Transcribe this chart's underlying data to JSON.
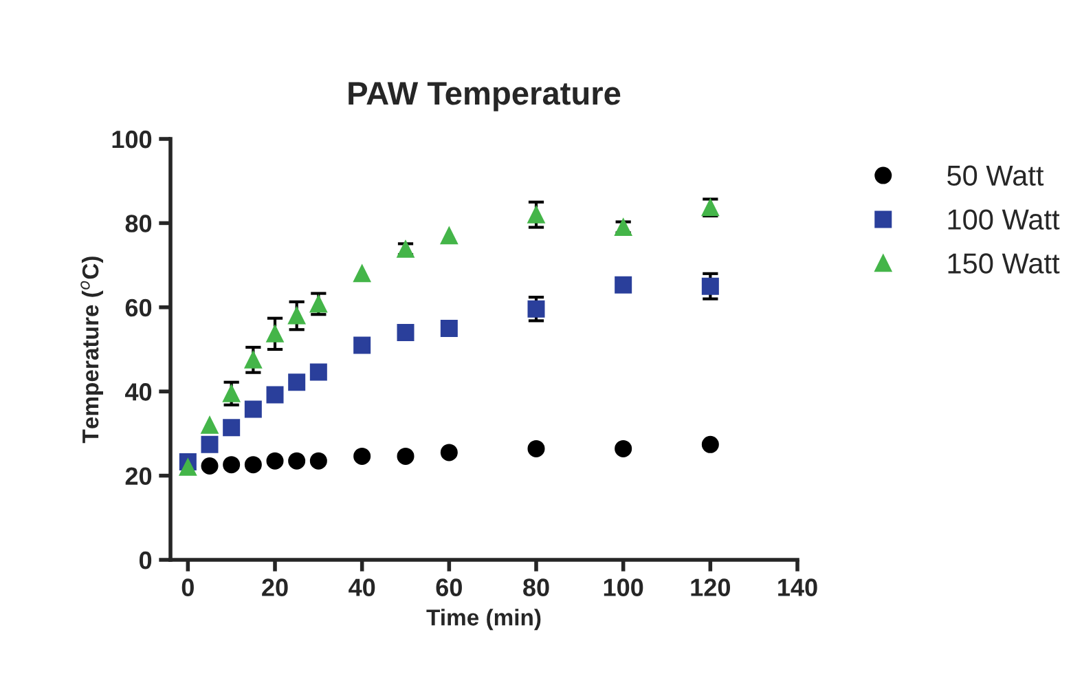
{
  "chart_data": {
    "type": "scatter",
    "title": "PAW Temperature",
    "xlabel": "Time (min)",
    "ylabel": "Temperature ($^{o}$C)",
    "x": [
      0,
      5,
      10,
      15,
      20,
      25,
      30,
      40,
      50,
      60,
      80,
      100,
      120
    ],
    "series": [
      {
        "name": "50 Watt",
        "color": "#000000",
        "marker": "circle",
        "values": [
          null,
          22.3,
          22.6,
          22.6,
          23.5,
          23.5,
          23.5,
          24.6,
          24.6,
          25.5,
          26.4,
          26.4,
          27.4
        ]
      },
      {
        "name": "100 Watt",
        "color": "#2a3f9b",
        "marker": "square",
        "values": [
          23.3,
          27.4,
          31.4,
          35.8,
          39.2,
          42.2,
          44.6,
          51,
          54,
          55,
          59.6,
          65.3,
          65
        ],
        "errors": [
          null,
          null,
          null,
          null,
          null,
          null,
          null,
          null,
          null,
          null,
          2.8,
          null,
          3
        ]
      },
      {
        "name": "150 Watt",
        "color": "#44b549",
        "marker": "triangle",
        "values": [
          22,
          32,
          39.5,
          47.5,
          53.7,
          58,
          60.8,
          68,
          73.8,
          77,
          82,
          79,
          83.7
        ],
        "errors": [
          null,
          null,
          2.7,
          3,
          3.7,
          3.3,
          2.5,
          null,
          1.3,
          null,
          3,
          1.3,
          2
        ]
      }
    ],
    "xlim": [
      -4,
      140
    ],
    "xticks": [
      0,
      20,
      40,
      60,
      80,
      100,
      120,
      140
    ],
    "ylim": [
      0,
      100
    ],
    "yticks": [
      0,
      20,
      40,
      60,
      80,
      100
    ],
    "grid": false,
    "legend": "right"
  }
}
